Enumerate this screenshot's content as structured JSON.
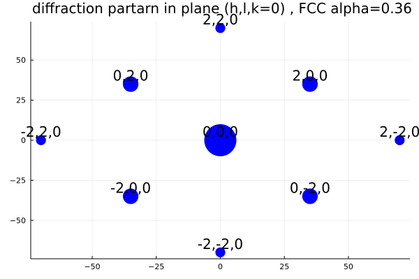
{
  "chart_data": {
    "type": "scatter",
    "title": "diffraction partarn in plane (h,l,k=0) , FCC alpha=0.36",
    "xlabel": "",
    "ylabel": "",
    "xlim": [
      -74,
      74
    ],
    "ylim": [
      -74,
      74
    ],
    "xticks": [
      -50,
      -25,
      0,
      25,
      50
    ],
    "yticks": [
      -50,
      -25,
      0,
      25,
      50
    ],
    "xtick_labels": [
      "−50",
      "−25",
      "0",
      "25",
      "50"
    ],
    "ytick_labels": [
      "−50",
      "−25",
      "0",
      "25",
      "50"
    ],
    "grid": true,
    "legend": "none",
    "color": "#0000ff",
    "points": [
      {
        "label": "0,0,0",
        "x": 0,
        "y": 0,
        "intensity": 1.0
      },
      {
        "label": "2,0,0",
        "x": 35,
        "y": 35,
        "intensity": 0.5
      },
      {
        "label": "0,2,0",
        "x": -35,
        "y": 35,
        "intensity": 0.5
      },
      {
        "label": "-2,0,0",
        "x": -35,
        "y": -35,
        "intensity": 0.5
      },
      {
        "label": "0,-2,0",
        "x": 35,
        "y": -35,
        "intensity": 0.5
      },
      {
        "label": "2,2,0",
        "x": 0,
        "y": 70,
        "intensity": 0.25
      },
      {
        "label": "-2,-2,0",
        "x": 0,
        "y": -70,
        "intensity": 0.25
      },
      {
        "label": "-2,2,0",
        "x": -70,
        "y": 0,
        "intensity": 0.25
      },
      {
        "label": "2,-2,0",
        "x": 70,
        "y": 0,
        "intensity": 0.25
      }
    ]
  }
}
